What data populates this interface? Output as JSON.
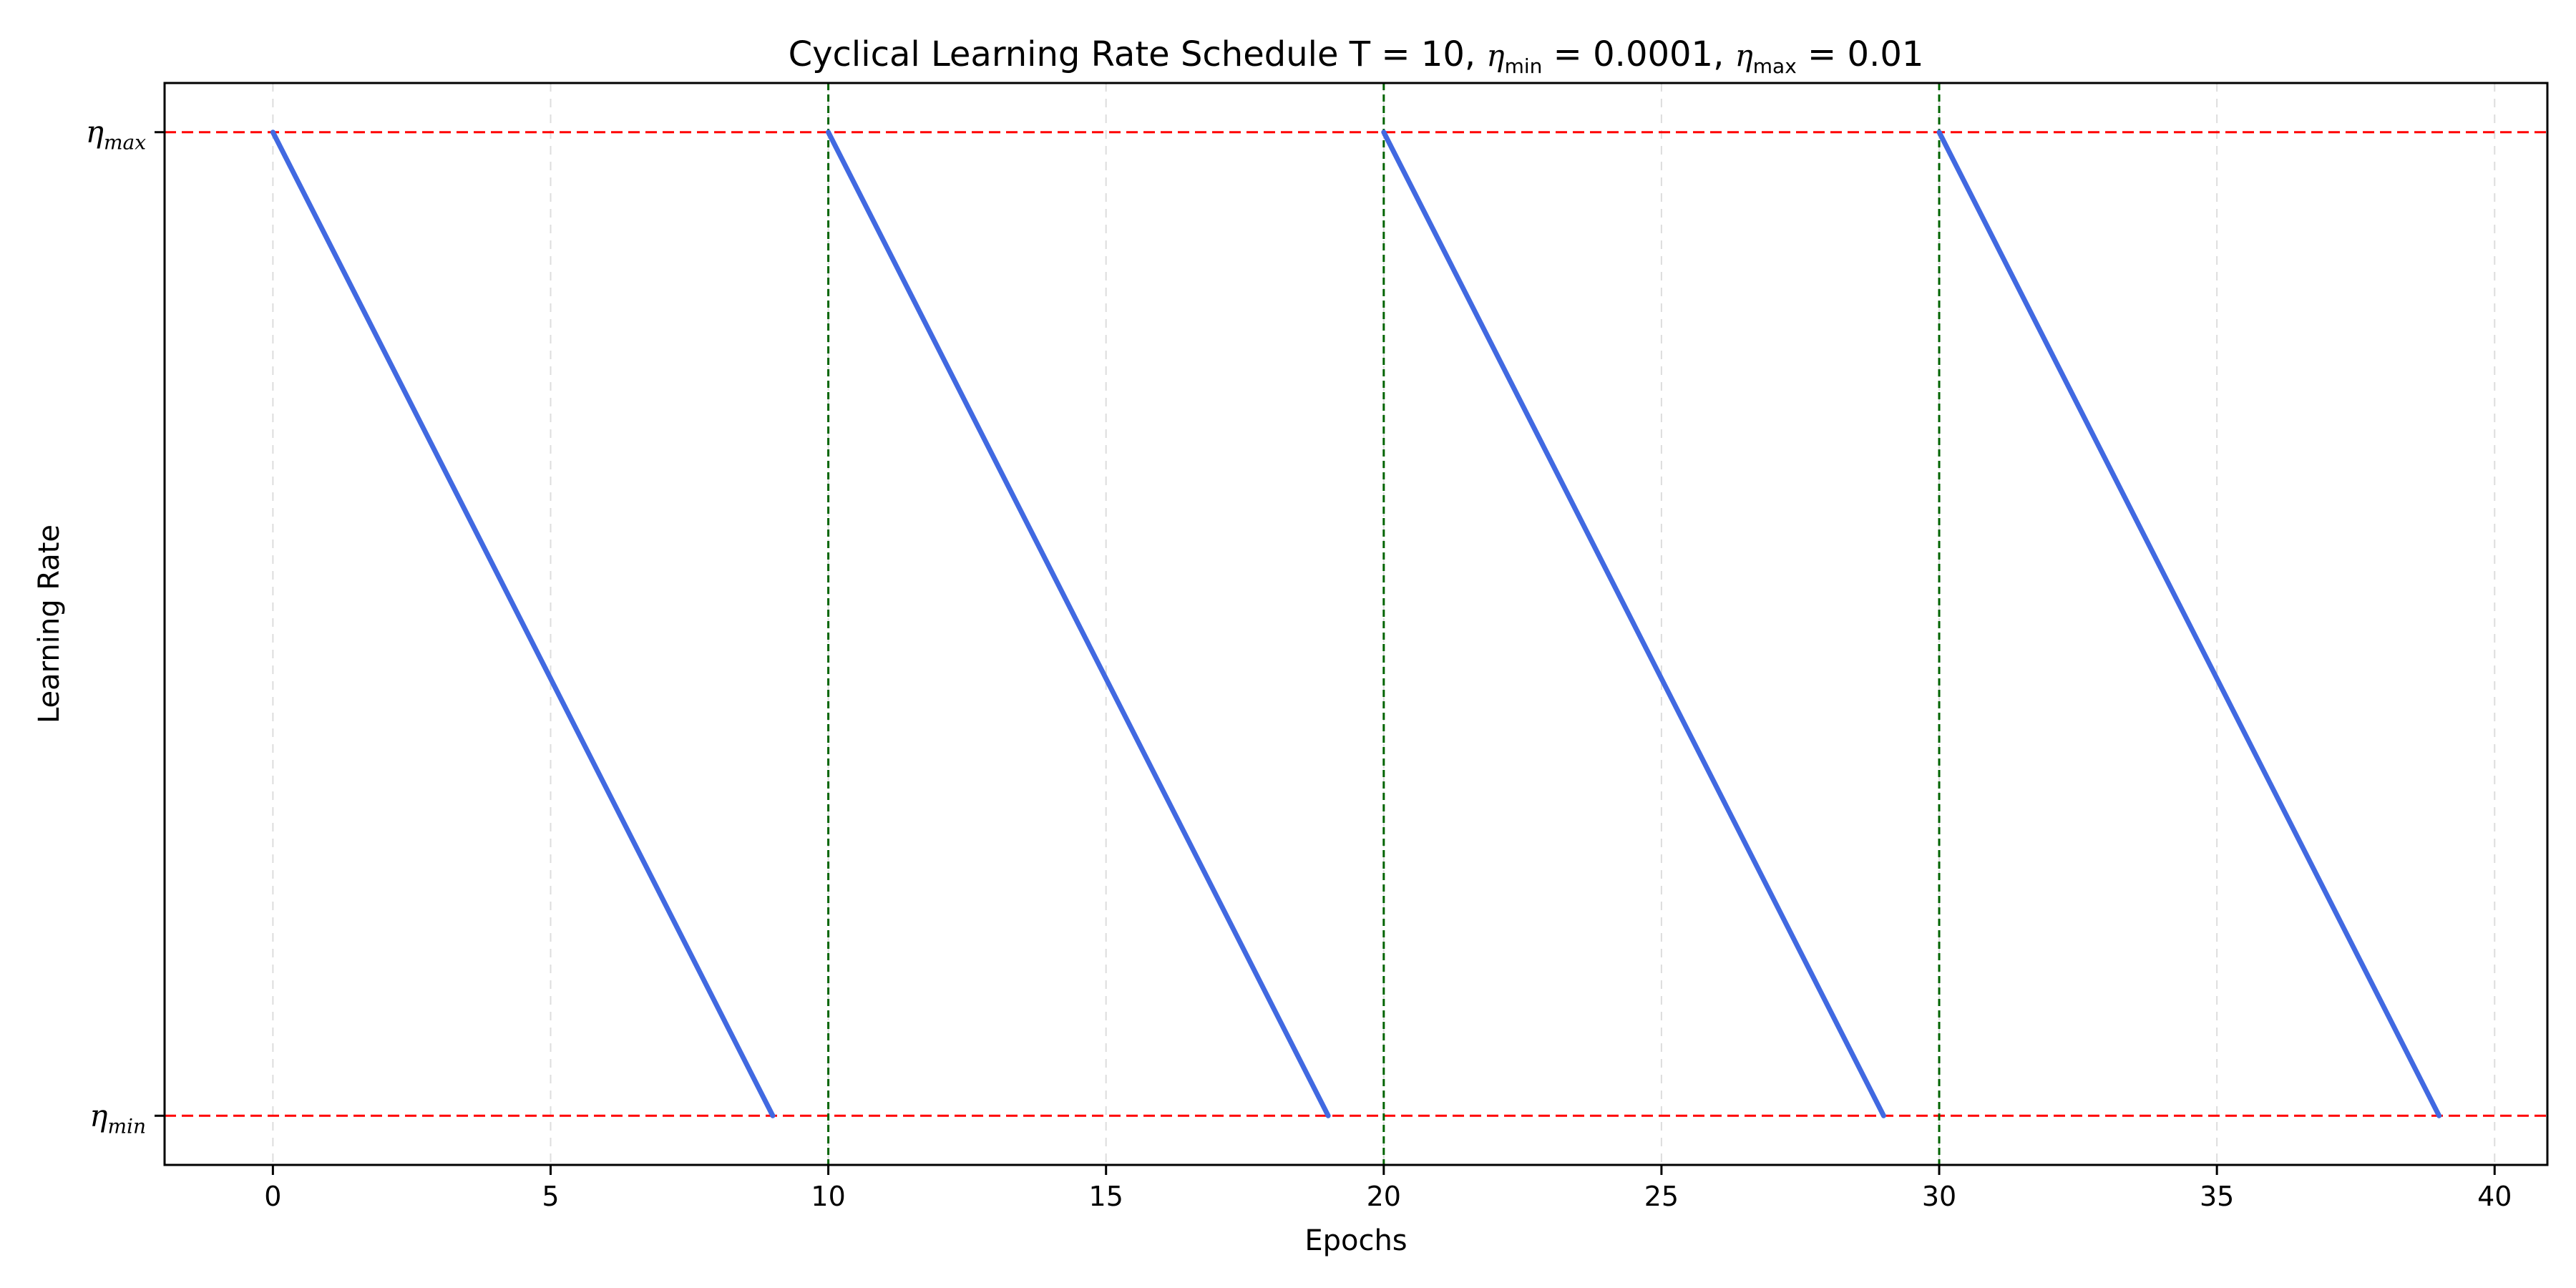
{
  "chart_data": {
    "type": "line",
    "title": {
      "prefix": "Cyclical Learning Rate Schedule T = 10, ",
      "eta1": "η",
      "eta1_sub": "min",
      "mid": " = 0.0001, ",
      "eta2": "η",
      "eta2_sub": "max",
      "suffix": " = 0.01"
    },
    "xlabel": "Epochs",
    "ylabel": "Learning Rate",
    "xlim": [
      -1.95,
      40.95
    ],
    "ylim": [
      -0.000395,
      0.010495
    ],
    "x_ticks": [
      0,
      5,
      10,
      15,
      20,
      25,
      30,
      35,
      40
    ],
    "y_ticks": [
      {
        "value": 0.0001,
        "symbol": "η",
        "sub": "min"
      },
      {
        "value": 0.01,
        "symbol": "η",
        "sub": "max"
      }
    ],
    "grid": "x-only, dashed, light gray",
    "series": [
      {
        "color": "#4169e1",
        "segments": [
          {
            "x": [
              0,
              9
            ],
            "y": [
              0.01,
              0.0001
            ]
          },
          {
            "x": [
              10,
              19
            ],
            "y": [
              0.01,
              0.0001
            ]
          },
          {
            "x": [
              20,
              29
            ],
            "y": [
              0.01,
              0.0001
            ]
          },
          {
            "x": [
              30,
              39
            ],
            "y": [
              0.01,
              0.0001
            ]
          }
        ]
      }
    ],
    "hlines": [
      {
        "y": 0.0001,
        "color": "#ff0000",
        "style": "dashed"
      },
      {
        "y": 0.01,
        "color": "#ff0000",
        "style": "dashed"
      }
    ],
    "vlines": [
      {
        "x": 10,
        "color": "#006400",
        "style": "dashed"
      },
      {
        "x": 20,
        "color": "#006400",
        "style": "dashed"
      },
      {
        "x": 30,
        "color": "#006400",
        "style": "dashed"
      }
    ]
  }
}
